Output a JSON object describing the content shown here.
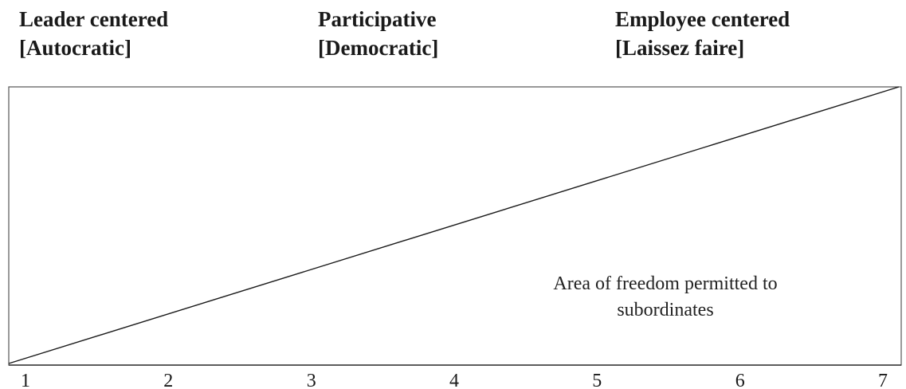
{
  "styles": [
    {
      "name": "Leader centered",
      "subtitle": "[Autocratic]"
    },
    {
      "name": "Participative",
      "subtitle": "[Democratic]"
    },
    {
      "name": "Employee centered",
      "subtitle": "[Laissez faire]"
    }
  ],
  "scale": {
    "ticks": [
      "1",
      "2",
      "3",
      "4",
      "5",
      "6",
      "7"
    ]
  },
  "annotation": {
    "line1": "Area of freedom permitted to",
    "line2": "subordinates"
  },
  "colors": {
    "line": "#1a1a1a",
    "border": "#555555",
    "text": "#1a1a1a"
  }
}
